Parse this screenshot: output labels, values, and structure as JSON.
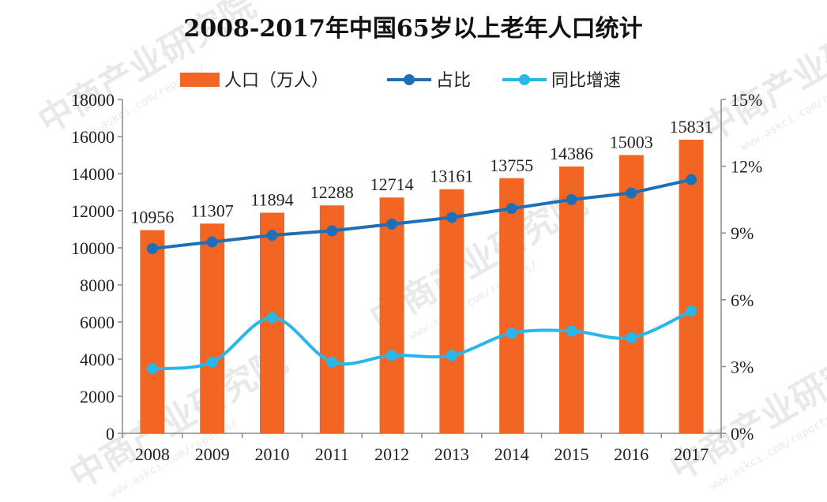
{
  "chart_data": {
    "type": "bar+line",
    "title": "2008-2017年中国65岁以上老年人口统计",
    "categories": [
      "2008",
      "2009",
      "2010",
      "2011",
      "2012",
      "2013",
      "2014",
      "2015",
      "2016",
      "2017"
    ],
    "series": [
      {
        "name": "人口（万人）",
        "type": "bar",
        "axis": "left",
        "values": [
          10956,
          11307,
          11894,
          12288,
          12714,
          13161,
          13755,
          14386,
          15003,
          15831
        ]
      },
      {
        "name": "占比",
        "type": "line",
        "axis": "right",
        "values": [
          8.3,
          8.6,
          8.9,
          9.1,
          9.4,
          9.7,
          10.1,
          10.5,
          10.8,
          11.4
        ]
      },
      {
        "name": "同比增速",
        "type": "line",
        "axis": "right",
        "values": [
          2.9,
          3.2,
          5.2,
          3.2,
          3.5,
          3.5,
          4.5,
          4.6,
          4.3,
          5.5
        ]
      }
    ],
    "ylim_left": [
      0,
      18000
    ],
    "yticks_left": [
      "0",
      "2000",
      "4000",
      "6000",
      "8000",
      "10000",
      "12000",
      "14000",
      "16000",
      "18000"
    ],
    "ylim_right": [
      0,
      15
    ],
    "yticks_right": [
      "0%",
      "3%",
      "6%",
      "9%",
      "12%",
      "15%"
    ],
    "legend_position": "top",
    "grid": false
  },
  "colors": {
    "bar": "#f26522",
    "share_line": "#1f6fb8",
    "growth_line": "#29b6e8",
    "axis": "#888888"
  },
  "watermark": {
    "text": "中商产业研究院",
    "url": "www.askci.com/reports/"
  }
}
